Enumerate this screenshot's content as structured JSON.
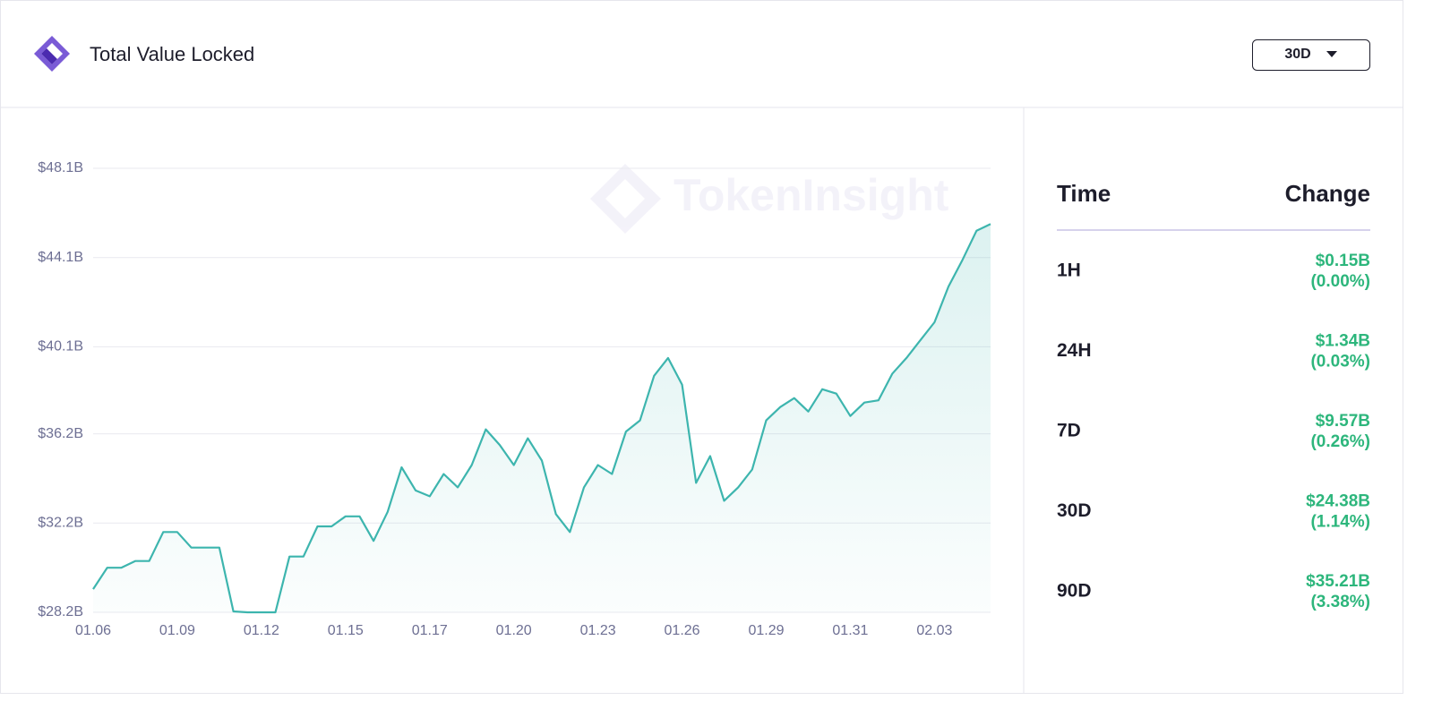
{
  "header": {
    "title": "Total Value Locked",
    "range": "30D"
  },
  "watermark": "TokenInsight",
  "chart_data": {
    "type": "line",
    "color": "#3db5ae",
    "categories": [
      "01.06",
      null,
      null,
      null,
      null,
      null,
      "01.09",
      null,
      null,
      null,
      null,
      null,
      "01.12",
      null,
      null,
      null,
      null,
      null,
      "01.15",
      null,
      null,
      null,
      null,
      null,
      "01.17",
      null,
      null,
      null,
      null,
      null,
      "01.20",
      null,
      null,
      null,
      null,
      null,
      "01.23",
      null,
      null,
      null,
      null,
      null,
      "01.26",
      null,
      null,
      null,
      null,
      null,
      "01.29",
      null,
      null,
      null,
      null,
      null,
      "01.31",
      null,
      null,
      null,
      null,
      null,
      "02.03",
      null,
      null,
      null,
      null
    ],
    "values": [
      29.24,
      30.2,
      30.2,
      30.5,
      30.5,
      31.8,
      31.8,
      31.1,
      31.1,
      31.1,
      28.24,
      28.2,
      28.2,
      28.2,
      30.7,
      30.7,
      32.05,
      32.05,
      32.5,
      32.5,
      31.4,
      32.7,
      34.7,
      33.66,
      33.4,
      34.4,
      33.8,
      34.8,
      36.4,
      35.7,
      34.8,
      36.0,
      35.0,
      32.6,
      31.8,
      33.8,
      34.8,
      34.4,
      36.3,
      36.8,
      38.8,
      39.6,
      38.4,
      34.0,
      35.2,
      33.2,
      33.8,
      34.6,
      36.8,
      37.4,
      37.8,
      37.2,
      38.2,
      38.0,
      37.0,
      37.6,
      37.7,
      38.9,
      39.6,
      40.4,
      41.2,
      42.8,
      44.0,
      45.3,
      45.6
    ],
    "ylim": [
      28.2,
      48.1
    ],
    "yticks": [
      {
        "value": 28.2,
        "label": "$28.2B"
      },
      {
        "value": 32.2,
        "label": "$32.2B"
      },
      {
        "value": 36.2,
        "label": "$36.2B"
      },
      {
        "value": 40.1,
        "label": "$40.1B"
      },
      {
        "value": 44.1,
        "label": "$44.1B"
      },
      {
        "value": 48.1,
        "label": "$48.1B"
      }
    ],
    "grid": true
  },
  "table": {
    "header": [
      "Time",
      "Change"
    ],
    "rows": [
      [
        "1H",
        "$0.15B",
        "(0.00%)"
      ],
      [
        "24H",
        "$1.34B",
        "(0.03%)"
      ],
      [
        "7D",
        "$9.57B",
        "(0.26%)"
      ],
      [
        "30D",
        "$24.38B",
        "(1.14%)"
      ],
      [
        "90D",
        "$35.21B",
        "(3.38%)"
      ]
    ]
  }
}
